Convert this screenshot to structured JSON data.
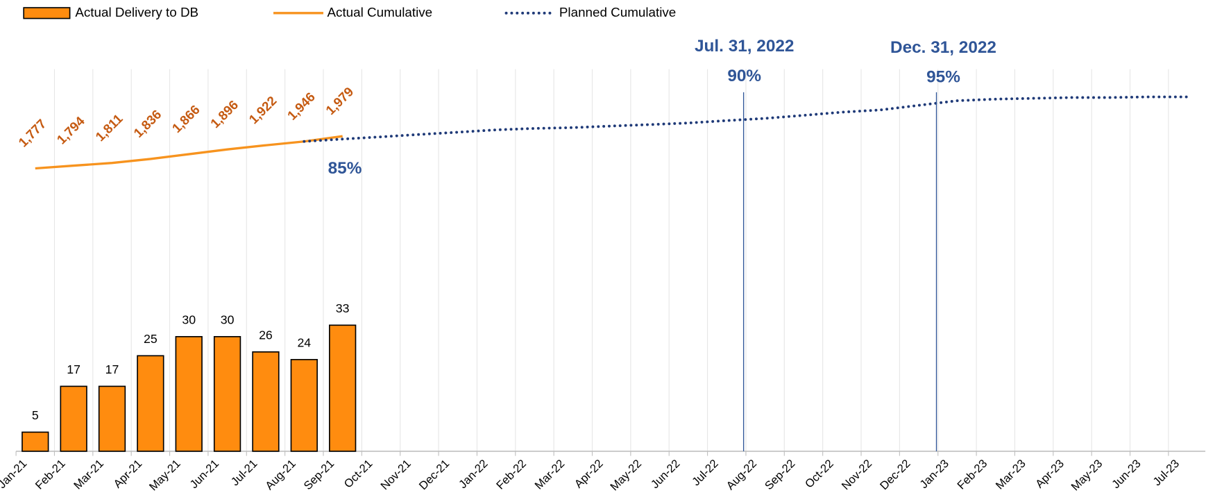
{
  "chart_data": {
    "type": "bar",
    "categories": [
      "Jan-21",
      "Feb-21",
      "Mar-21",
      "Apr-21",
      "May-21",
      "Jun-21",
      "Jul-21",
      "Aug-21",
      "Sep-21",
      "Oct-21",
      "Nov-21",
      "Dec-21",
      "Jan-22",
      "Feb-22",
      "Mar-22",
      "Apr-22",
      "May-22",
      "Jun-22",
      "Jul-22",
      "Aug-22",
      "Sep-22",
      "Oct-22",
      "Nov-22",
      "Dec-22",
      "Jan-23",
      "Feb-23",
      "Mar-23",
      "Apr-23",
      "May-23",
      "Jun-23",
      "Jul-23"
    ],
    "series": [
      {
        "name": "Actual Delivery to DB",
        "type": "bar",
        "color": "#ff8c0f",
        "values": [
          5,
          17,
          17,
          25,
          30,
          30,
          26,
          24,
          33,
          null,
          null,
          null,
          null,
          null,
          null,
          null,
          null,
          null,
          null,
          null,
          null,
          null,
          null,
          null,
          null,
          null,
          null,
          null,
          null,
          null,
          null
        ]
      },
      {
        "name": "Actual Cumulative",
        "type": "line",
        "axis": "y2",
        "color": "#f7931e",
        "values": [
          1777,
          1794,
          1811,
          1836,
          1866,
          1896,
          1922,
          1946,
          1979,
          null,
          null,
          null,
          null,
          null,
          null,
          null,
          null,
          null,
          null,
          null,
          null,
          null,
          null,
          null,
          null,
          null,
          null,
          null,
          null,
          null,
          null
        ],
        "value_labels": [
          "1,777",
          "1,794",
          "1,811",
          "1,836",
          "1,866",
          "1,896",
          "1,922",
          "1,946",
          "1,979",
          null,
          null,
          null,
          null,
          null,
          null,
          null,
          null,
          null,
          null,
          null,
          null,
          null,
          null,
          null,
          null,
          null,
          null,
          null,
          null,
          null,
          null
        ]
      },
      {
        "name": "Planned Cumulative",
        "type": "line",
        "axis": "y2",
        "color": "#1f3a78",
        "dotted": true,
        "values": [
          null,
          null,
          null,
          null,
          null,
          null,
          null,
          1946,
          1961,
          1975,
          1990,
          2004,
          2019,
          2028,
          2033,
          2043,
          2052,
          2062,
          2077,
          2091,
          2110,
          2130,
          2144,
          2173,
          2202,
          2212,
          2217,
          2222,
          2222,
          2226,
          2226
        ]
      }
    ],
    "ylim": [
      0,
      100
    ],
    "y2lim": [
      0,
      2400
    ],
    "grid": true,
    "legend": "top-left",
    "annotations": [
      {
        "text": "85%"
      },
      {
        "text": "Jul. 31, 2022",
        "label": "90%"
      },
      {
        "text": "Dec. 31, 2022",
        "label": "95%"
      }
    ]
  }
}
